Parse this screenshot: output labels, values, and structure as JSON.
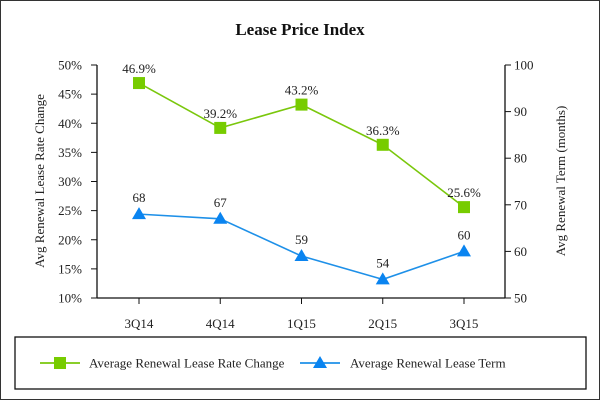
{
  "chart_data": {
    "type": "line",
    "title": "Lease Price Index",
    "categories": [
      "3Q14",
      "4Q14",
      "1Q15",
      "2Q15",
      "3Q15"
    ],
    "y_left": {
      "label": "Avg Renewal Lease Rate Change",
      "range": [
        10,
        50
      ],
      "ticks": [
        10,
        15,
        20,
        25,
        30,
        35,
        40,
        45,
        50
      ],
      "tick_labels": [
        "10%",
        "15%",
        "20%",
        "25%",
        "30%",
        "35%",
        "40%",
        "45%",
        "50%"
      ]
    },
    "y_right": {
      "label": "Avg Renewal Term (months)",
      "range": [
        50,
        100
      ],
      "ticks": [
        50,
        60,
        70,
        80,
        90,
        100
      ],
      "tick_labels": [
        "50",
        "60",
        "70",
        "80",
        "90",
        "100"
      ]
    },
    "series": [
      {
        "name": "Average Renewal Lease Rate Change",
        "axis": "left",
        "marker": "square",
        "color": "#7ac70c",
        "marker_color": "#77cc00",
        "values": [
          46.9,
          39.2,
          43.2,
          36.3,
          25.6
        ],
        "labels": [
          "46.9%",
          "39.2%",
          "43.2%",
          "36.3%",
          "25.6%"
        ]
      },
      {
        "name": "Average Renewal Lease Term",
        "axis": "right",
        "marker": "triangle",
        "color": "#1e90e8",
        "marker_color": "#0a84f0",
        "values": [
          68,
          67,
          59,
          54,
          60
        ],
        "labels": [
          "68",
          "67",
          "59",
          "54",
          "60"
        ]
      }
    ],
    "grid": false,
    "legend_position": "bottom"
  }
}
